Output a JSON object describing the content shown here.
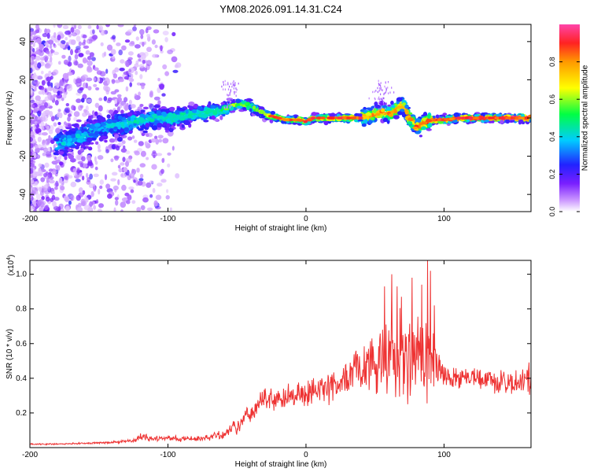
{
  "figure": {
    "title": "YM08.2026.091.14.31.C24"
  },
  "chart_data": [
    {
      "type": "heatmap",
      "name": "spectrogram",
      "xlabel": "Height of straight line (km)",
      "ylabel": "Frequency (Hz)",
      "xlim": [
        -200,
        163
      ],
      "ylim": [
        -49,
        49
      ],
      "xticks": [
        -200,
        -100,
        0,
        100
      ],
      "yticks": [
        -40,
        -20,
        0,
        20,
        40
      ],
      "xtick_labels": [
        "-200",
        "-100",
        "0",
        "100"
      ],
      "ytick_labels": [
        "-40",
        "-20",
        "0",
        "20",
        "40"
      ],
      "ridge": {
        "x": [
          -180,
          -170,
          -160,
          -150,
          -140,
          -130,
          -120,
          -110,
          -100,
          -90,
          -80,
          -70,
          -60,
          -55,
          -50,
          -45,
          -40,
          -35,
          -30,
          -25,
          -20,
          -15,
          -10,
          -5,
          0,
          5,
          10,
          20,
          30,
          40,
          50,
          55,
          60,
          65,
          70,
          75,
          80,
          85,
          90,
          95,
          100,
          110,
          120,
          130,
          140,
          150,
          160,
          163
        ],
        "y": [
          -14,
          -11,
          -9,
          -6,
          -4,
          -3,
          -1,
          0,
          0,
          1,
          2,
          3,
          4,
          6,
          7,
          7,
          6,
          4,
          2,
          1,
          0,
          -1,
          -1,
          -1,
          -2,
          0,
          0,
          0,
          0,
          0,
          2,
          3,
          2,
          4,
          7,
          0,
          -5,
          -3,
          -1,
          -1,
          -1,
          0,
          0,
          0,
          0,
          0,
          0,
          0
        ]
      },
      "colorbar": {
        "label": "Normalized spectral amplitude",
        "range": [
          0,
          1
        ],
        "ticks": [
          0.0,
          0.2,
          0.4,
          0.6,
          0.8
        ],
        "tick_labels": [
          "0.0",
          "0.2",
          "0.4",
          "0.6",
          "0.8"
        ]
      }
    },
    {
      "type": "line",
      "name": "snr",
      "xlabel": "Height of straight line (km)",
      "ylabel": "SNR (10 * v/v)",
      "y_multiplier_label": "(x10",
      "y_multiplier_exp": "4",
      "xlim": [
        -200,
        163
      ],
      "ylim": [
        0,
        1.08
      ],
      "xticks": [
        -200,
        -100,
        0,
        100
      ],
      "yticks": [
        0.2,
        0.4,
        0.6,
        0.8,
        1.0
      ],
      "xtick_labels": [
        "-200",
        "-100",
        "0",
        "100"
      ],
      "ytick_labels": [
        "0.2",
        "0.4",
        "0.6",
        "0.8",
        "1.0"
      ],
      "color": "#ee3333",
      "series": [
        {
          "name": "SNR",
          "x": [
            -200,
            -180,
            -160,
            -140,
            -125,
            -120,
            -110,
            -100,
            -90,
            -80,
            -70,
            -60,
            -50,
            -40,
            -30,
            -20,
            -10,
            0,
            10,
            20,
            30,
            35,
            40,
            50,
            55,
            60,
            65,
            70,
            75,
            80,
            85,
            90,
            95,
            100,
            110,
            120,
            130,
            140,
            150,
            160,
            163
          ],
          "y": [
            0.02,
            0.02,
            0.025,
            0.03,
            0.04,
            0.06,
            0.05,
            0.06,
            0.05,
            0.05,
            0.06,
            0.08,
            0.12,
            0.2,
            0.28,
            0.28,
            0.3,
            0.32,
            0.32,
            0.35,
            0.4,
            0.46,
            0.48,
            0.5,
            0.5,
            0.55,
            0.52,
            0.5,
            0.5,
            0.52,
            0.5,
            0.55,
            0.45,
            0.42,
            0.4,
            0.42,
            0.4,
            0.38,
            0.36,
            0.4,
            0.4
          ],
          "noise": [
            0.005,
            0.005,
            0.006,
            0.008,
            0.015,
            0.03,
            0.02,
            0.02,
            0.02,
            0.02,
            0.025,
            0.035,
            0.05,
            0.07,
            0.08,
            0.08,
            0.08,
            0.09,
            0.1,
            0.11,
            0.13,
            0.15,
            0.18,
            0.22,
            0.28,
            0.32,
            0.33,
            0.3,
            0.3,
            0.3,
            0.33,
            0.3,
            0.15,
            0.1,
            0.07,
            0.07,
            0.07,
            0.08,
            0.09,
            0.12,
            0.12
          ],
          "peaks": [
            [
              57,
              0.93
            ],
            [
              62,
              1.0
            ],
            [
              66,
              0.93
            ],
            [
              69,
              0.87
            ],
            [
              77,
              0.98
            ],
            [
              84,
              0.94
            ],
            [
              88,
              1.08
            ],
            [
              90,
              1.02
            ],
            [
              93,
              0.82
            ]
          ]
        }
      ]
    }
  ]
}
